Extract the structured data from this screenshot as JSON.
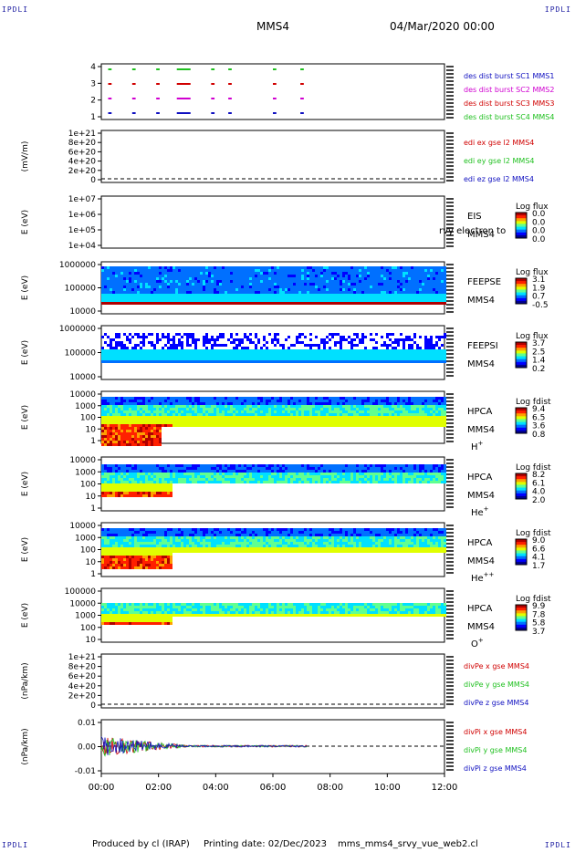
{
  "header": {
    "corner": "IPDLI",
    "spacecraft": "MMS4",
    "date": "04/Mar/2020 00:00"
  },
  "footer": {
    "produced": "Produced by cl (IRAP)",
    "printing": "Printing date: 02/Dec/2023",
    "file": "mms_mms4_srvy_vue_web2.cl"
  },
  "colors": {
    "blue": "#1010c0",
    "magenta": "#d000d0",
    "red": "#d00000",
    "green": "#20c020"
  },
  "chart_data": [
    {
      "type": "scatter",
      "id": "burst",
      "ylabel": "",
      "yticks": [
        "4",
        "3",
        "2",
        "1"
      ],
      "legend": [
        "des dist burst SC1 MMS1",
        "des dist burst SC2 MMS2",
        "des dist burst SC3 MMS3",
        "des dist burst SC4 MMS4"
      ]
    },
    {
      "type": "line",
      "id": "edi",
      "ylabel": "(mV/m)",
      "yticks": [
        "1e+21",
        "8e+20",
        "6e+20",
        "4e+20",
        "2e+20",
        "0"
      ],
      "legend": [
        "edi ex gse l2 MMS4",
        "edi ey gse l2 MMS4",
        "edi ez gse l2 MMS4"
      ]
    },
    {
      "type": "heatmap",
      "id": "eis",
      "ylabel": "E (eV)",
      "yticks": [
        "1e+07",
        "1e+06",
        "1e+05",
        "1e+04"
      ],
      "label1": "EIS",
      "label2": "MMS4",
      "overlay": "rvy electron to",
      "cbtitle": "Log flux",
      "cbticks": [
        "0.0",
        "0.0",
        "0.0",
        "0.0"
      ]
    },
    {
      "type": "heatmap",
      "id": "feepse",
      "ylabel": "E (eV)",
      "yticks": [
        "1000000",
        "100000",
        "10000"
      ],
      "label1": "FEEPSE",
      "label2": "MMS4",
      "cbtitle": "Log flux",
      "cbticks": [
        "3.1",
        "1.9",
        "0.7",
        "-0.5"
      ]
    },
    {
      "type": "heatmap",
      "id": "feepsi",
      "ylabel": "E (eV)",
      "yticks": [
        "1000000",
        "100000",
        "10000"
      ],
      "label1": "FEEPSI",
      "label2": "MMS4",
      "cbtitle": "Log flux",
      "cbticks": [
        "3.7",
        "2.5",
        "1.4",
        "0.2"
      ]
    },
    {
      "type": "heatmap",
      "id": "hpca_h",
      "ylabel": "E (eV)",
      "yticks": [
        "10000",
        "1000",
        "100",
        "10",
        "1"
      ],
      "label1": "HPCA",
      "label2": "MMS4",
      "species": "H",
      "sup": "+",
      "cbtitle": "Log fdist",
      "cbticks": [
        "9.4",
        "6.5",
        "3.6",
        "0.8"
      ]
    },
    {
      "type": "heatmap",
      "id": "hpca_he",
      "ylabel": "E (eV)",
      "yticks": [
        "10000",
        "1000",
        "100",
        "10",
        "1"
      ],
      "label1": "HPCA",
      "label2": "MMS4",
      "species": "He",
      "sup": "+",
      "cbtitle": "Log fdist",
      "cbticks": [
        "8.2",
        "6.1",
        "4.0",
        "2.0"
      ]
    },
    {
      "type": "heatmap",
      "id": "hpca_hepp",
      "ylabel": "E (eV)",
      "yticks": [
        "10000",
        "1000",
        "100",
        "10",
        "1"
      ],
      "label1": "HPCA",
      "label2": "MMS4",
      "species": "He",
      "sup": "++",
      "cbtitle": "Log fdist",
      "cbticks": [
        "9.0",
        "6.6",
        "4.1",
        "1.7"
      ]
    },
    {
      "type": "heatmap",
      "id": "hpca_o",
      "ylabel": "E (eV)",
      "yticks": [
        "100000",
        "10000",
        "1000",
        "100",
        "10"
      ],
      "label1": "HPCA",
      "label2": "MMS4",
      "species": "O",
      "sup": "+",
      "cbtitle": "Log fdist",
      "cbticks": [
        "9.9",
        "7.8",
        "5.8",
        "3.7"
      ]
    },
    {
      "type": "line",
      "id": "divpe",
      "ylabel": "(nPa/km)",
      "yticks": [
        "1e+21",
        "8e+20",
        "6e+20",
        "4e+20",
        "2e+20",
        "0"
      ],
      "legend": [
        "divPe x gse MMS4",
        "divPe y gse MMS4",
        "divPe z gse MMS4"
      ]
    },
    {
      "type": "line",
      "id": "divpi",
      "ylabel": "(nPa/km)",
      "yticks": [
        "0.01",
        "0.00",
        "-0.01"
      ],
      "ylim": [
        -0.015,
        0.015
      ],
      "legend": [
        "divPi x gse MMS4",
        "divPi y gse MMS4",
        "divPi z gse MMS4"
      ]
    }
  ],
  "xaxis": {
    "ticks": [
      "00:00",
      "02:00",
      "04:00",
      "06:00",
      "08:00",
      "10:00",
      "12:00"
    ]
  }
}
